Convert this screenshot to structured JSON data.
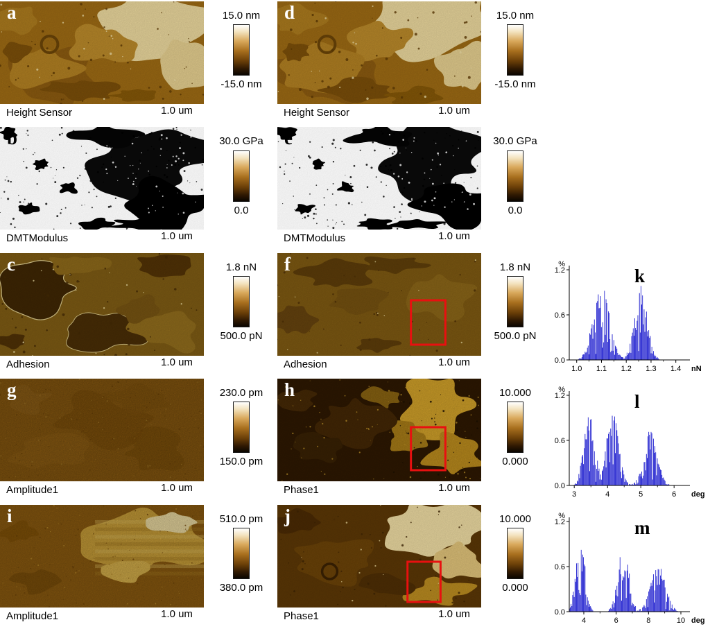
{
  "figure": {
    "annotation_color": "#e81010",
    "panels": [
      {
        "letter": "a",
        "label": "Height Sensor",
        "scalebar": "1.0 um",
        "colorbar_top": "15.0 nm",
        "colorbar_bottom": "-15.0 nm",
        "variant": "height",
        "row": 1,
        "col": 1,
        "red_box": false
      },
      {
        "letter": "d",
        "label": "Height Sensor",
        "scalebar": "1.0 um",
        "colorbar_top": "15.0 nm",
        "colorbar_bottom": "-15.0 nm",
        "variant": "height",
        "row": 1,
        "col": 2,
        "red_box": false
      },
      {
        "letter": "b",
        "label": "DMTModulus",
        "scalebar": "1.0 um",
        "colorbar_top": "30.0 GPa",
        "colorbar_bottom": "0.0",
        "variant": "modulus",
        "row": 2,
        "col": 1,
        "red_box": false
      },
      {
        "letter": "e",
        "label": "DMTModulus",
        "scalebar": "1.0 um",
        "colorbar_top": "30.0 GPa",
        "colorbar_bottom": "0.0",
        "variant": "modulus",
        "row": 2,
        "col": 2,
        "red_box": false
      },
      {
        "letter": "c",
        "label": "Adhesion",
        "scalebar": "1.0 um",
        "colorbar_top": "1.8 nN",
        "colorbar_bottom": "500.0 pN",
        "variant": "adhesion",
        "row": 3,
        "col": 1,
        "red_box": false
      },
      {
        "letter": "f",
        "label": "Adhesion",
        "scalebar": "1.0 um",
        "colorbar_top": "1.8 nN",
        "colorbar_bottom": "500.0 pN",
        "variant": "adhesion2",
        "row": 3,
        "col": 2,
        "red_box": true
      },
      {
        "letter": "g",
        "label": "Amplitude1",
        "scalebar": "1.0 um",
        "colorbar_top": "230.0 pm",
        "colorbar_bottom": "150.0 pm",
        "variant": "amplitude1",
        "row": 4,
        "col": 1,
        "red_box": false
      },
      {
        "letter": "h",
        "label": "Phase1",
        "scalebar": "1.0 um",
        "colorbar_top": "10.000",
        "colorbar_bottom": "0.000",
        "variant": "phase1",
        "row": 4,
        "col": 2,
        "red_box": true
      },
      {
        "letter": "i",
        "label": "Amplitude1",
        "scalebar": "1.0 um",
        "colorbar_top": "510.0 pm",
        "colorbar_bottom": "380.0 pm",
        "variant": "amplitude2",
        "row": 5,
        "col": 1,
        "red_box": false
      },
      {
        "letter": "j",
        "label": "Phase1",
        "scalebar": "1.0 um",
        "colorbar_top": "10.000",
        "colorbar_bottom": "0.000",
        "variant": "phase2",
        "row": 5,
        "col": 2,
        "red_box": true
      }
    ]
  },
  "chart_data": [
    {
      "letter": "k",
      "type": "histogram",
      "row": 3,
      "color": "#1414cc",
      "ylabel": "%",
      "ylim": [
        0,
        1.2
      ],
      "yticks": [
        0,
        0.6,
        1.2
      ],
      "ytick_labels": [
        "0.0",
        "0.6",
        "1.2"
      ],
      "xlim": [
        0.97,
        1.44
      ],
      "xticks": [
        1.0,
        1.1,
        1.2,
        1.3,
        1.4
      ],
      "xtick_labels": [
        "1.0",
        "1.1",
        "1.2",
        "1.3",
        "1.4"
      ],
      "xminor_step": 0.05,
      "xunit": "nN",
      "legend": "none",
      "grid": false,
      "clusters": [
        {
          "center": 1.1,
          "sigma": 0.032,
          "peak": 1.02
        },
        {
          "center": 1.26,
          "sigma": 0.026,
          "peak": 0.92
        }
      ]
    },
    {
      "letter": "l",
      "type": "histogram",
      "row": 4,
      "color": "#1414cc",
      "ylabel": "%",
      "ylim": [
        0,
        1.2
      ],
      "yticks": [
        0,
        0.6,
        1.2
      ],
      "ytick_labels": [
        "0.0",
        "0.6",
        "1.2"
      ],
      "xlim": [
        2.85,
        6.35
      ],
      "xticks": [
        3,
        4,
        5,
        6
      ],
      "xtick_labels": [
        "3",
        "4",
        "5",
        "6"
      ],
      "xminor_step": 0.5,
      "xunit": "deg",
      "legend": "none",
      "grid": false,
      "clusters": [
        {
          "center": 3.45,
          "sigma": 0.16,
          "peak": 0.98
        },
        {
          "center": 4.15,
          "sigma": 0.18,
          "peak": 1.02
        },
        {
          "center": 5.3,
          "sigma": 0.2,
          "peak": 0.72
        }
      ]
    },
    {
      "letter": "m",
      "type": "histogram",
      "row": 5,
      "color": "#1414cc",
      "ylabel": "%",
      "ylim": [
        0,
        1.2
      ],
      "yticks": [
        0,
        0.6,
        1.2
      ],
      "ytick_labels": [
        "0.0",
        "0.6",
        "1.2"
      ],
      "xlim": [
        3.1,
        10.3
      ],
      "xticks": [
        4,
        6,
        8,
        10
      ],
      "xtick_labels": [
        "4",
        "6",
        "8",
        "10"
      ],
      "xminor_step": 1,
      "xunit": "deg",
      "legend": "none",
      "grid": false,
      "clusters": [
        {
          "center": 3.8,
          "sigma": 0.28,
          "peak": 0.95
        },
        {
          "center": 6.45,
          "sigma": 0.33,
          "peak": 0.92
        },
        {
          "center": 8.6,
          "sigma": 0.45,
          "peak": 0.62
        }
      ]
    }
  ]
}
